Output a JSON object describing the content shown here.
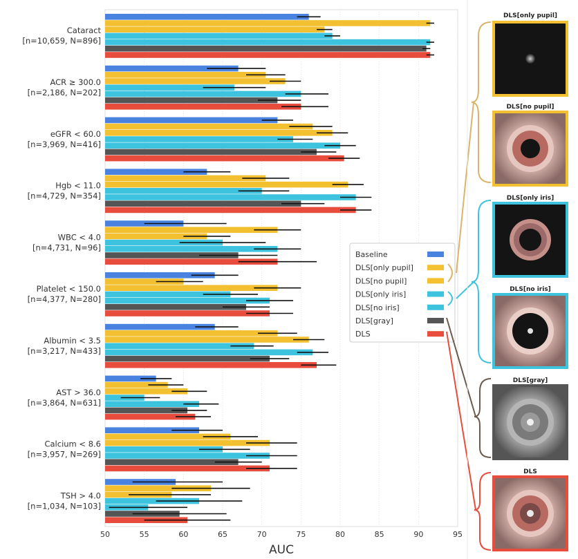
{
  "chart_data": {
    "type": "bar",
    "orientation": "horizontal",
    "xlabel": "AUC",
    "xlim": [
      50,
      95
    ],
    "xticks": [
      50,
      55,
      60,
      65,
      70,
      75,
      80,
      85,
      90,
      95
    ],
    "grid": true,
    "legend_position": "center-right",
    "categories": [
      {
        "label": "Cataract",
        "counts": "[n=10,659, N=896]"
      },
      {
        "label": "ACR ≥ 300.0",
        "counts": "[n=2,186, N=202]"
      },
      {
        "label": "eGFR < 60.0",
        "counts": "[n=3,969, N=416]"
      },
      {
        "label": "Hgb < 11.0",
        "counts": "[n=4,729, N=354]"
      },
      {
        "label": "WBC < 4.0",
        "counts": "[n=4,731, N=96]"
      },
      {
        "label": "Platelet < 150.0",
        "counts": "[n=4,377, N=280]"
      },
      {
        "label": "Albumin < 3.5",
        "counts": "[n=3,217, N=433]"
      },
      {
        "label": "AST > 36.0",
        "counts": "[n=3,864, N=631]"
      },
      {
        "label": "Calcium < 8.6",
        "counts": "[n=3,957, N=269]"
      },
      {
        "label": "TSH > 4.0",
        "counts": "[n=1,034, N=103]"
      }
    ],
    "series": [
      {
        "name": "Baseline",
        "color": "#4a82e0",
        "values": [
          76,
          67,
          72,
          63,
          60,
          64,
          64,
          56.5,
          62,
          59
        ],
        "ci": [
          [
            74.5,
            77.5
          ],
          [
            63,
            70.5
          ],
          [
            70,
            74
          ],
          [
            60,
            66
          ],
          [
            55,
            65.5
          ],
          [
            61,
            67
          ],
          [
            61.5,
            67
          ],
          [
            54.5,
            58.5
          ],
          [
            58.5,
            65
          ],
          [
            53.5,
            65
          ]
        ]
      },
      {
        "name": "DLS[only pupil]",
        "color": "#f2c030",
        "values": [
          91.5,
          70.5,
          76.5,
          70.5,
          72,
          60,
          72,
          58,
          66,
          63.5
        ],
        "ci": [
          [
            91,
            92
          ],
          [
            68,
            73
          ],
          [
            73.5,
            79
          ],
          [
            67.5,
            73.5
          ],
          [
            69,
            75
          ],
          [
            56.5,
            62.5
          ],
          [
            69.5,
            74.5
          ],
          [
            55.5,
            60
          ],
          [
            62.5,
            69.5
          ],
          [
            58.5,
            68.5
          ]
        ]
      },
      {
        "name": "DLS[no pupil]",
        "color": "#f2c030",
        "values": [
          78,
          73,
          79,
          81,
          63,
          72,
          76,
          60.5,
          71,
          58.5
        ],
        "ci": [
          [
            77,
            79
          ],
          [
            71,
            75
          ],
          [
            77,
            81
          ],
          [
            79,
            83
          ],
          [
            60,
            66
          ],
          [
            69,
            75
          ],
          [
            74,
            78
          ],
          [
            58.5,
            63
          ],
          [
            68,
            74.5
          ],
          [
            53,
            63.5
          ]
        ]
      },
      {
        "name": "DLS[only iris]",
        "color": "#3dc3de",
        "values": [
          79,
          66.5,
          74,
          70,
          65,
          66,
          69,
          55,
          65,
          62
        ],
        "ci": [
          [
            78,
            80
          ],
          [
            62.5,
            70.5
          ],
          [
            72,
            76.5
          ],
          [
            67,
            73.5
          ],
          [
            59.5,
            70.5
          ],
          [
            62.5,
            69.5
          ],
          [
            66,
            71.5
          ],
          [
            52,
            57
          ],
          [
            62,
            68.5
          ],
          [
            56.5,
            67.5
          ]
        ]
      },
      {
        "name": "DLS[no iris]",
        "color": "#3dc3de",
        "values": [
          91.5,
          75,
          80,
          82,
          72,
          71,
          76.5,
          62,
          71,
          55.5
        ],
        "ci": [
          [
            91,
            92
          ],
          [
            73,
            78.5
          ],
          [
            78,
            82
          ],
          [
            80,
            84
          ],
          [
            69,
            75
          ],
          [
            68,
            74
          ],
          [
            74.5,
            78.5
          ],
          [
            60,
            64.5
          ],
          [
            68,
            74.5
          ],
          [
            50.5,
            60.5
          ]
        ]
      },
      {
        "name": "DLS[gray]",
        "color": "#555555",
        "values": [
          91,
          72,
          77,
          75,
          67,
          68,
          71,
          60.5,
          67,
          59.5
        ],
        "ci": [
          [
            90.5,
            91.5
          ],
          [
            69.5,
            75
          ],
          [
            75,
            79.5
          ],
          [
            72.5,
            78
          ],
          [
            62,
            72
          ],
          [
            65,
            71
          ],
          [
            68.5,
            73.5
          ],
          [
            58.5,
            63
          ],
          [
            64,
            70
          ],
          [
            53.5,
            65.5
          ]
        ]
      },
      {
        "name": "DLS",
        "color": "#e74c3c",
        "values": [
          91.5,
          75,
          80.5,
          82,
          72,
          71,
          77,
          61.5,
          71,
          60.5
        ],
        "ci": [
          [
            91,
            92
          ],
          [
            72.5,
            78.5
          ],
          [
            78.5,
            82.5
          ],
          [
            80,
            84
          ],
          [
            67,
            77
          ],
          [
            68,
            74
          ],
          [
            75,
            79.5
          ],
          [
            59,
            63.5
          ],
          [
            68,
            74.5
          ],
          [
            55,
            66
          ]
        ]
      }
    ]
  },
  "legend": {
    "items": [
      {
        "label": "Baseline",
        "color": "#4a82e0"
      },
      {
        "label": "DLS[only pupil]",
        "color": "#f2c030"
      },
      {
        "label": "DLS[no pupil]",
        "color": "#f2c030"
      },
      {
        "label": "DLS[only iris]",
        "color": "#3dc3de"
      },
      {
        "label": "DLS[no iris]",
        "color": "#3dc3de"
      },
      {
        "label": "DLS[gray]",
        "color": "#555555"
      },
      {
        "label": "DLS",
        "color": "#e74c3c"
      }
    ]
  },
  "thumbnails": [
    {
      "title": "DLS[only pupil]",
      "border": "#f2c030",
      "content": "only-pupil"
    },
    {
      "title": "DLS[no pupil]",
      "border": "#f2c030",
      "content": "no-pupil"
    },
    {
      "title": "DLS[only iris]",
      "border": "#3dc3de",
      "content": "only-iris"
    },
    {
      "title": "DLS[no iris]",
      "border": "#3dc3de",
      "content": "no-iris"
    },
    {
      "title": "DLS[gray]",
      "border": "#555555",
      "content": "gray"
    },
    {
      "title": "DLS",
      "border": "#e74c3c",
      "content": "full"
    }
  ],
  "colors": {
    "gold_group": "#d9b46a",
    "cyan_group": "#3dc3de",
    "gray_group": "#6b5a4e",
    "red_group": "#e74c3c"
  }
}
